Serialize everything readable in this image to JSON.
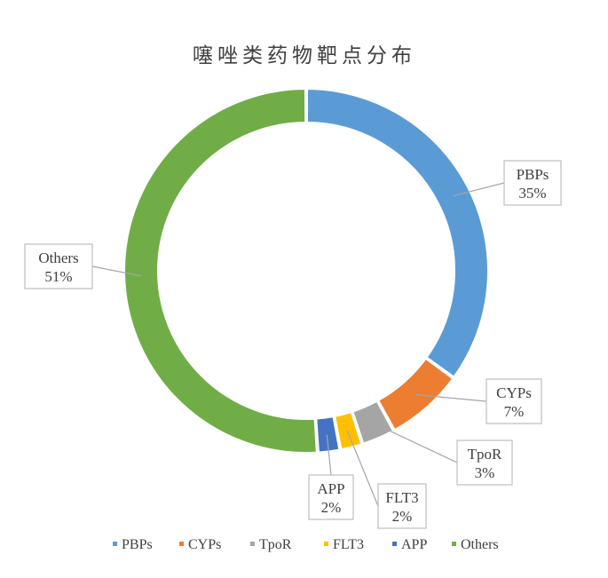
{
  "chart_data": {
    "type": "pie",
    "title": "噻唑类药物靶点分布",
    "slices": [
      {
        "name": "PBPs",
        "value": 35,
        "label": "35%",
        "color": "#5B9BD5"
      },
      {
        "name": "CYPs",
        "value": 7,
        "label": "7%",
        "color": "#ED7D31"
      },
      {
        "name": "TpoR",
        "value": 3,
        "label": "3%",
        "color": "#A5A5A5"
      },
      {
        "name": "FLT3",
        "value": 2,
        "label": "2%",
        "color": "#FFC000"
      },
      {
        "name": "APP",
        "value": 2,
        "label": "2%",
        "color": "#4472C4"
      },
      {
        "name": "Others",
        "value": 51,
        "label": "51%",
        "color": "#70AD47"
      }
    ],
    "legend_position": "bottom",
    "donut": true
  }
}
